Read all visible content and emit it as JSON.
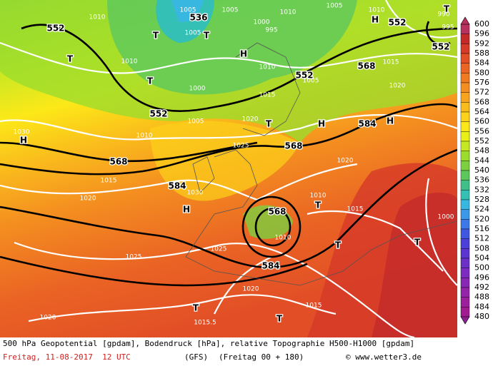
{
  "map": {
    "labels": [
      "552",
      "536",
      "1005",
      "1005",
      "1000",
      "995",
      "1010",
      "1005",
      "1010",
      "H",
      "552",
      "990",
      "T",
      "995",
      "552",
      "1010",
      "T",
      "T",
      "1005",
      "T",
      "1010",
      "H",
      "1010",
      "552",
      "1005",
      "568",
      "1015",
      "T",
      "1000",
      "1015",
      "1020",
      "552",
      "1005",
      "1020",
      "T",
      "H",
      "584",
      "H",
      "1030",
      "H",
      "1010",
      "1025",
      "568",
      "568",
      "1015",
      "584",
      "1030",
      "1020",
      "1020",
      "H",
      "1010",
      "T",
      "1015",
      "568",
      "1010",
      "1000",
      "T",
      "T",
      "1025",
      "1025",
      "584",
      "1020",
      "1015",
      "T",
      "1020",
      "1015.5",
      "T"
    ]
  },
  "legend": {
    "labels": [
      "600",
      "596",
      "592",
      "588",
      "584",
      "580",
      "576",
      "572",
      "568",
      "564",
      "560",
      "556",
      "552",
      "548",
      "544",
      "540",
      "536",
      "532",
      "528",
      "524",
      "520",
      "516",
      "512",
      "508",
      "504",
      "500",
      "496",
      "492",
      "488",
      "484",
      "480"
    ],
    "colors": [
      "#b8305e",
      "#c42a2a",
      "#d63a28",
      "#e24e26",
      "#ea6424",
      "#f07a22",
      "#f48e20",
      "#f8a41e",
      "#fabc1c",
      "#fcd21a",
      "#fce818",
      "#e8f018",
      "#c4e824",
      "#9cdc2c",
      "#7cd040",
      "#5cc85c",
      "#40c088",
      "#34c0b4",
      "#38b8e0",
      "#3c98e8",
      "#3c78e8",
      "#4058e0",
      "#4c40d8",
      "#5c34d0",
      "#6c30c8",
      "#7c2cc0",
      "#8828b4",
      "#9424a8",
      "#9c209c",
      "#a01c90",
      "#8c2090"
    ]
  },
  "footer": {
    "line1": "500 hPa Geopotential [gpdam], Bodendruck [hPa], relative Topographie H500-H1000 [gpdam]",
    "date": "Freitag, 11-08-2017  12 UTC",
    "model": "(GFS)",
    "run": "(Freitag 00 + 180)",
    "site": "© www.wetter3.de"
  }
}
